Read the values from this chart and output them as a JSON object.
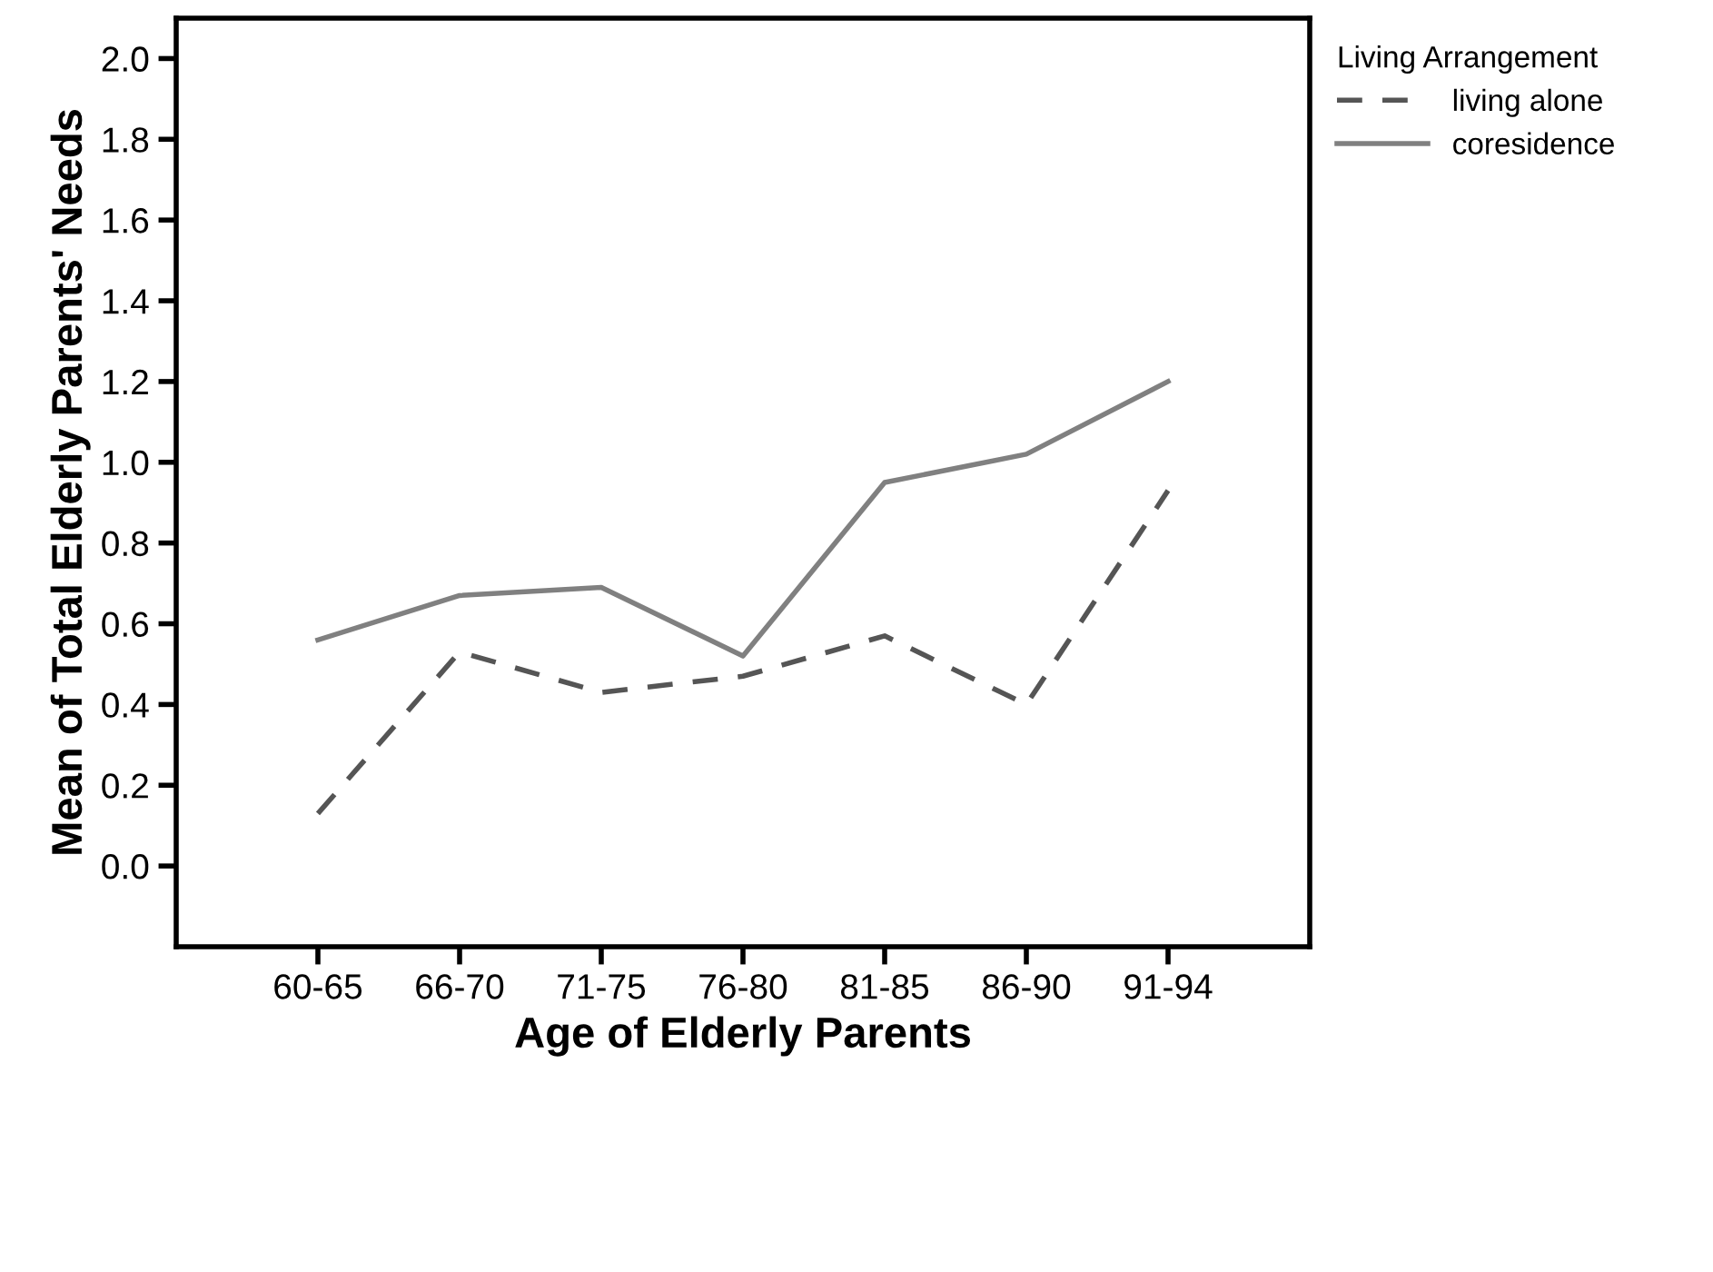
{
  "chart_data": {
    "type": "line",
    "xlabel": "Age of Elderly Parents",
    "ylabel": "Mean of Total Elderly Parents' Needs",
    "legend_title": "Living Arrangement",
    "legend": "top right",
    "categories": [
      "60-65",
      "66-70",
      "71-75",
      "76-80",
      "81-85",
      "86-90",
      "91-94"
    ],
    "series": [
      {
        "name": "living alone",
        "color": "#555555",
        "line_style": "dashed",
        "values": [
          0.13,
          0.53,
          0.43,
          0.47,
          0.57,
          0.4,
          0.93
        ]
      },
      {
        "name": "coresidence",
        "color": "#808080",
        "line_style": "solid",
        "values": [
          0.56,
          0.67,
          0.69,
          0.52,
          0.95,
          1.02,
          1.2
        ]
      }
    ],
    "ylim": [
      -0.2,
      2.1
    ],
    "yticks": [
      {
        "value": 0,
        "label": "0.0"
      },
      0.2,
      0.4,
      0.6,
      0.8,
      {
        "value": 1,
        "label": "1.0"
      },
      1.2,
      1.4,
      1.6,
      1.8,
      {
        "value": 2,
        "label": "2.0"
      }
    ],
    "grid": false,
    "marker": "none"
  }
}
